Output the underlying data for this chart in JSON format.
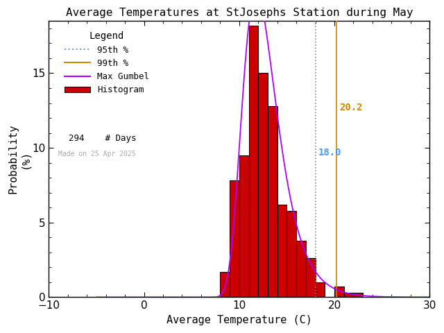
{
  "title": "Average Temperatures at StJosephs Station during May",
  "xlabel": "Average Temperature (C)",
  "ylabel": "Probability\n(%)",
  "xlim": [
    -10,
    30
  ],
  "ylim": [
    0,
    19
  ],
  "ylim_display": [
    0,
    17
  ],
  "xticks": [
    -10,
    0,
    10,
    20,
    30
  ],
  "yticks": [
    0,
    5,
    10,
    15
  ],
  "bin_edges": [
    8,
    9,
    10,
    11,
    12,
    13,
    14,
    15,
    16,
    17,
    18,
    19,
    20,
    21,
    22,
    23
  ],
  "bin_heights": [
    1.7,
    7.8,
    9.5,
    18.2,
    15.0,
    12.8,
    6.2,
    5.8,
    3.8,
    2.6,
    1.0,
    0.0,
    0.7,
    0.3,
    0.3,
    0.0
  ],
  "bin_width": 1,
  "hist_color": "#cc0000",
  "hist_edge_color": "#000000",
  "percentile_95": 18.0,
  "percentile_99": 20.2,
  "n_days": 294,
  "made_on": "Made on 25 Apr 2025",
  "p95_color": "#888888",
  "p99_color": "#cc8800",
  "p95_label_color": "#4499ff",
  "p95_label": "18.0",
  "p99_label": "20.2",
  "gumbel_mu": 11.8,
  "gumbel_beta": 1.8,
  "legend_title": "Legend",
  "background_color": "#ffffff",
  "legend_p95_color": "#6699ff",
  "legend_p99_color": "#cc8800",
  "legend_gumbel_color": "#aa00ff"
}
